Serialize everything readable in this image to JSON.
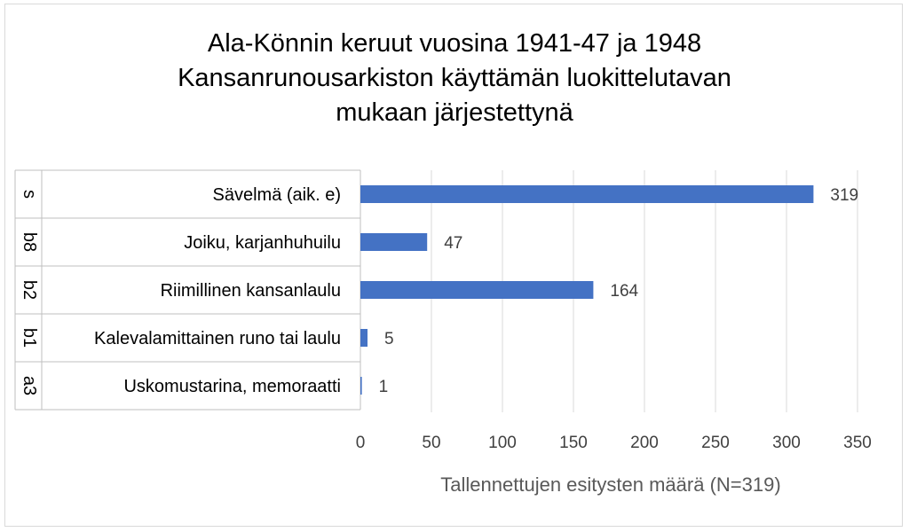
{
  "chart_data": {
    "type": "bar",
    "orientation": "horizontal",
    "title": [
      "Ala-Könnin keruut vuosina 1941-47 ja 1948",
      "Kansanrunousarkiston käyttämän luokittelutavan",
      "mukaan järjestettynä"
    ],
    "xlabel": "Tallennettujen esitysten määrä (N=319)",
    "ylabel": "",
    "xlim": [
      0,
      350
    ],
    "x_ticks": [
      0,
      50,
      100,
      150,
      200,
      250,
      300,
      350
    ],
    "grid": true,
    "legend": "none",
    "bar_color": "#4472c4",
    "categories": [
      {
        "code": "s",
        "label": "Sävelmä (aik. e)",
        "value": 319
      },
      {
        "code": "b8",
        "label": "Joiku, karjanhuhuilu",
        "value": 47
      },
      {
        "code": "b2",
        "label": "Riimillinen kansanlaulu",
        "value": 164
      },
      {
        "code": "b1",
        "label": "Kalevalamittainen runo tai laulu",
        "value": 5
      },
      {
        "code": "a3",
        "label": "Uskomustarina, memoraatti",
        "value": 1
      }
    ]
  }
}
